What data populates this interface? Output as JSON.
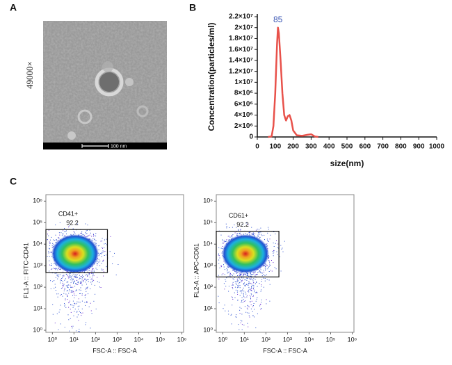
{
  "panel_labels": [
    "A",
    "B",
    "C"
  ],
  "image": {
    "magnification": "49000×",
    "scale_bar": "100 nm"
  },
  "chart_data": [
    {
      "type": "line",
      "xlabel": "size(nm)",
      "ylabel": "Concentration(particles/ml)",
      "x": [
        60,
        80,
        90,
        100,
        110,
        115,
        120,
        130,
        140,
        150,
        160,
        170,
        180,
        190,
        200,
        220,
        250,
        280,
        300,
        320,
        340
      ],
      "series": [
        {
          "name": "Concentration",
          "color": "#e8514a",
          "values": [
            0,
            100000,
            2000000,
            8000000,
            17000000,
            20000000,
            19000000,
            14000000,
            8000000,
            4000000,
            3000000,
            3800000,
            4000000,
            3000000,
            1200000,
            300000,
            200000,
            400000,
            500000,
            100000,
            0
          ]
        }
      ],
      "xlim": [
        0,
        1000
      ],
      "xticks": [
        0,
        100,
        200,
        300,
        400,
        500,
        600,
        700,
        800,
        900,
        1000
      ],
      "ylim": [
        0,
        22000000
      ],
      "yticks": [
        0,
        {
          "value": 2000000,
          "label": "2×10⁶"
        },
        {
          "value": 4000000,
          "label": "4×10⁶"
        },
        {
          "value": 6000000,
          "label": "6×10⁶"
        },
        {
          "value": 8000000,
          "label": "8×10⁶"
        },
        {
          "value": 10000000,
          "label": "1×10⁷"
        },
        {
          "value": 12000000,
          "label": "1.2×10⁷"
        },
        {
          "value": 14000000,
          "label": "1.4×10⁷"
        },
        {
          "value": 16000000,
          "label": "1.6×10⁷"
        },
        {
          "value": 18000000,
          "label": "1.8×10⁷"
        },
        {
          "value": 20000000,
          "label": "2×10⁷"
        },
        {
          "value": 22000000,
          "label": "2.2×10⁷"
        }
      ],
      "annotations": [
        {
          "text": "85",
          "x": 115,
          "y": 20000000,
          "color": "#3a55b4"
        }
      ]
    },
    {
      "type": "scatter",
      "log": true,
      "xlabel": "FSC-A :: FSC-A",
      "ylabel": "FL1-A :: FITC-CD41",
      "xlim": [
        0.5,
        1200000
      ],
      "ylim": [
        0.8,
        2000000
      ],
      "xticks": [
        {
          "value": 1,
          "label": "10⁰"
        },
        {
          "value": 10,
          "label": "10¹"
        },
        {
          "value": 100,
          "label": "10²"
        },
        {
          "value": 1000,
          "label": "10³"
        },
        {
          "value": 10000,
          "label": "10⁴"
        },
        {
          "value": 100000,
          "label": "10⁵"
        },
        {
          "value": 1000000,
          "label": "10⁶"
        }
      ],
      "yticks": [
        {
          "value": 1,
          "label": "10⁰"
        },
        {
          "value": 10,
          "label": "10¹"
        },
        {
          "value": 100,
          "label": "10²"
        },
        {
          "value": 1000,
          "label": "10³"
        },
        {
          "value": 10000,
          "label": "10⁴"
        },
        {
          "value": 100000,
          "label": "10⁵"
        },
        {
          "value": 1000000,
          "label": "10⁶"
        }
      ],
      "gate": {
        "name": "CD41+",
        "percent": 92.2,
        "x": [
          0.5,
          355
        ],
        "y": [
          480,
          48000
        ]
      }
    },
    {
      "type": "scatter",
      "log": true,
      "xlabel": "FSC-A :: FSC-A",
      "ylabel": "FL2-A :: APC-CD61",
      "xlim": [
        0.5,
        1200000
      ],
      "ylim": [
        0.8,
        2000000
      ],
      "xticks": [
        {
          "value": 1,
          "label": "10⁰"
        },
        {
          "value": 10,
          "label": "10¹"
        },
        {
          "value": 100,
          "label": "10²"
        },
        {
          "value": 1000,
          "label": "10³"
        },
        {
          "value": 10000,
          "label": "10⁴"
        },
        {
          "value": 100000,
          "label": "10⁵"
        },
        {
          "value": 1000000,
          "label": "10⁶"
        }
      ],
      "yticks": [
        {
          "value": 1,
          "label": "10⁰"
        },
        {
          "value": 10,
          "label": "10¹"
        },
        {
          "value": 100,
          "label": "10²"
        },
        {
          "value": 1000,
          "label": "10³"
        },
        {
          "value": 10000,
          "label": "10⁴"
        },
        {
          "value": 100000,
          "label": "10⁵"
        },
        {
          "value": 1000000,
          "label": "10⁶"
        }
      ],
      "gate": {
        "name": "CD61+",
        "percent": 92.2,
        "x": [
          0.5,
          400
        ],
        "y": [
          300,
          40000
        ]
      }
    }
  ]
}
